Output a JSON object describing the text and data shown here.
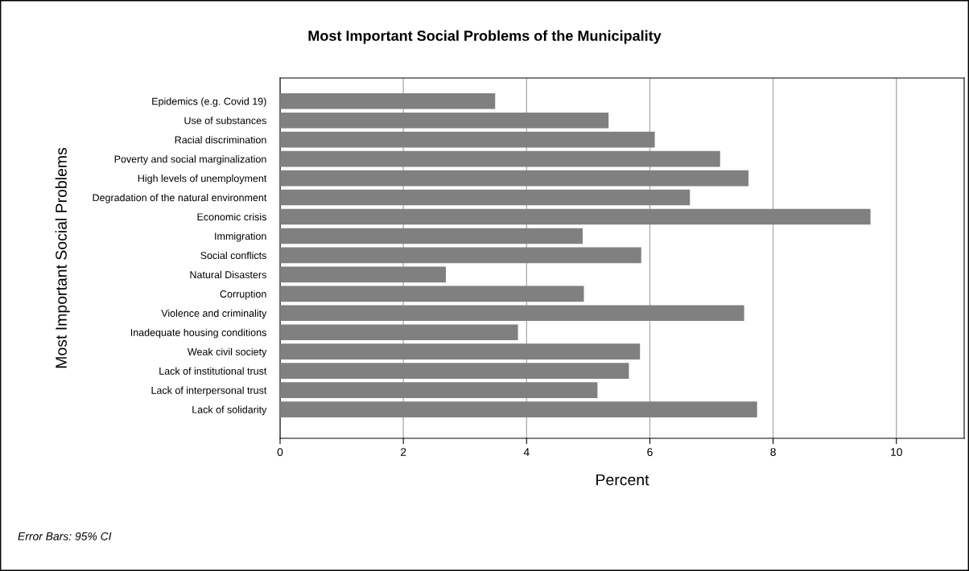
{
  "chart_data": {
    "type": "bar",
    "orientation": "horizontal",
    "title": "Most Important Social Problems of the Municipality",
    "xlabel": "Percent",
    "ylabel": "Most Important Social Problems",
    "categories": [
      "Epidemics (e.g. Covid 19)",
      "Use of substances",
      "Racial discrimination",
      "Poverty and social marginalization",
      "High levels of unemployment",
      "Degradation of the natural environment",
      "Economic crisis",
      "Immigration",
      "Social conflicts",
      "Natural Disasters",
      "Corruption",
      "Violence and criminality",
      "Inadequate housing conditions",
      "Weak civil society",
      "Lack of institutional trust",
      "Lack of interpersonal trust",
      "Lack of solidarity"
    ],
    "values": [
      3.49,
      5.33,
      6.08,
      7.14,
      7.6,
      6.65,
      9.58,
      4.91,
      5.86,
      2.69,
      4.93,
      7.53,
      3.86,
      5.84,
      5.66,
      5.15,
      7.74
    ],
    "color": "#808080",
    "xlim": [
      0,
      11.1
    ],
    "xticks": [
      0,
      2,
      4,
      6,
      8,
      10
    ],
    "grid": "x",
    "annotations": [
      "Error Bars: 95% CI"
    ]
  }
}
